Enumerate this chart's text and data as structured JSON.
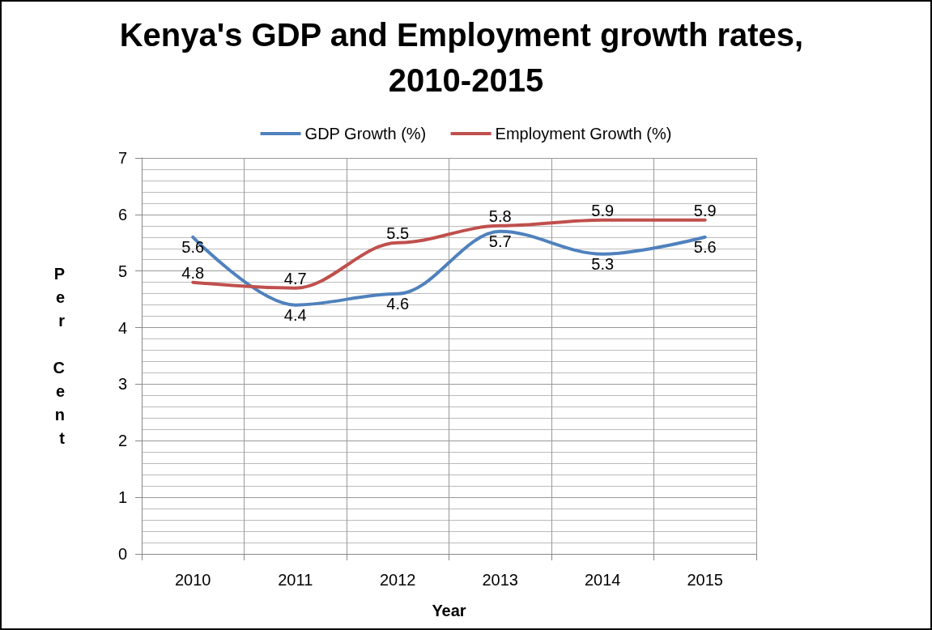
{
  "chart_data": {
    "type": "line",
    "title": "Kenya's GDP and Employment growth rates, 2010-2015",
    "xlabel": "Year",
    "ylabel": "Per Cent",
    "categories": [
      "2010",
      "2011",
      "2012",
      "2013",
      "2014",
      "2015"
    ],
    "series": [
      {
        "name": "GDP Growth (%)",
        "color": "#4f81bd",
        "values": [
          5.6,
          4.4,
          4.6,
          5.7,
          5.3,
          5.6
        ]
      },
      {
        "name": "Employment Growth (%)",
        "color": "#c0504d",
        "values": [
          4.8,
          4.7,
          5.5,
          5.8,
          5.9,
          5.9
        ]
      }
    ],
    "ylim": [
      0,
      7
    ],
    "yticks": [
      0,
      1,
      2,
      3,
      4,
      5,
      6,
      7
    ],
    "grid": true,
    "legend": "top",
    "data_labels": true,
    "marker": "none",
    "line_style": "solid"
  }
}
